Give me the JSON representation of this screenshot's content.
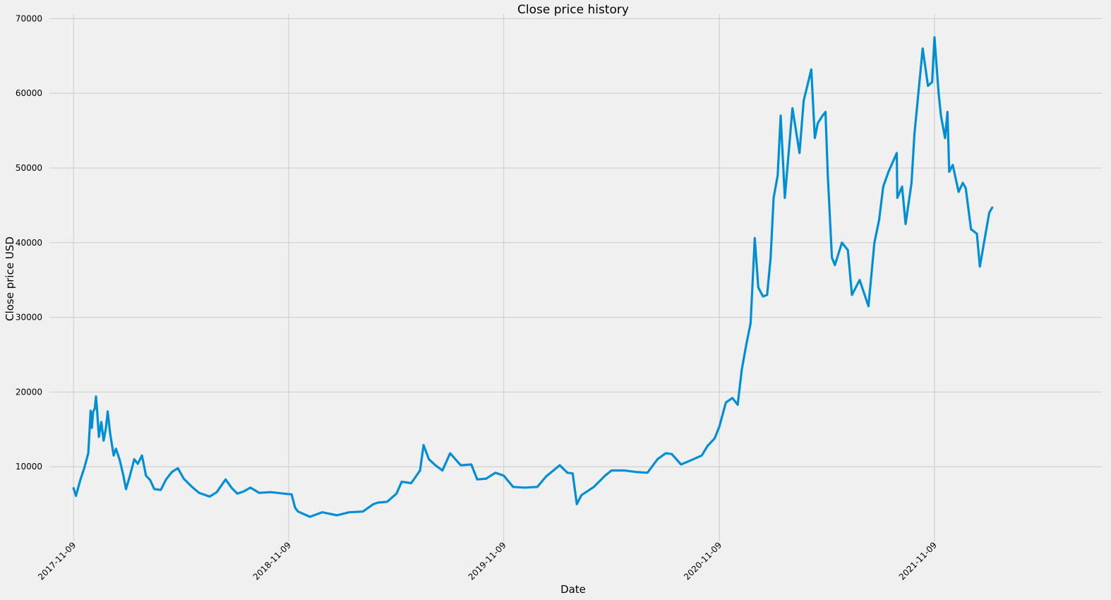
{
  "chart_data": {
    "type": "line",
    "title": "Close price history",
    "xlabel": "Date",
    "ylabel": "Close price USD",
    "x_tick_labels": [
      "2017-11-09",
      "2018-11-09",
      "2019-11-09",
      "2020-11-09",
      "2021-11-09"
    ],
    "y_tick_labels": [
      "10000",
      "20000",
      "30000",
      "40000",
      "50000",
      "60000",
      "70000"
    ],
    "yticks": [
      10000,
      20000,
      30000,
      40000,
      50000,
      60000,
      70000
    ],
    "xlim": [
      "2017-09-29",
      "2022-08-20"
    ],
    "ylim": [
      0,
      70600
    ],
    "grid": true,
    "colors": {
      "line": "#008fd5",
      "background": "#f0f0f0",
      "grid": "#cbcbcb"
    },
    "series": [
      {
        "x": [
          "2017-11-09",
          "2017-11-13",
          "2017-11-20",
          "2017-11-27",
          "2017-12-04",
          "2017-12-08",
          "2017-12-10",
          "2017-12-12",
          "2017-12-15",
          "2017-12-17",
          "2017-12-19",
          "2017-12-22",
          "2017-12-26",
          "2017-12-30",
          "2018-01-03",
          "2018-01-06",
          "2018-01-10",
          "2018-01-16",
          "2018-01-20",
          "2018-01-26",
          "2018-02-01",
          "2018-02-06",
          "2018-02-12",
          "2018-02-20",
          "2018-02-26",
          "2018-03-05",
          "2018-03-12",
          "2018-03-19",
          "2018-03-26",
          "2018-04-06",
          "2018-04-15",
          "2018-04-25",
          "2018-05-05",
          "2018-05-15",
          "2018-05-29",
          "2018-06-10",
          "2018-06-28",
          "2018-07-10",
          "2018-07-25",
          "2018-08-05",
          "2018-08-14",
          "2018-08-25",
          "2018-09-05",
          "2018-09-20",
          "2018-10-10",
          "2018-11-01",
          "2018-11-14",
          "2018-11-20",
          "2018-11-25",
          "2018-12-15",
          "2019-01-05",
          "2019-01-30",
          "2019-02-20",
          "2019-03-15",
          "2019-04-02",
          "2019-04-10",
          "2019-04-25",
          "2019-05-11",
          "2019-05-20",
          "2019-06-05",
          "2019-06-20",
          "2019-06-26",
          "2019-07-05",
          "2019-07-16",
          "2019-07-28",
          "2019-08-10",
          "2019-08-28",
          "2019-09-15",
          "2019-09-25",
          "2019-10-10",
          "2019-10-26",
          "2019-11-09",
          "2019-11-25",
          "2019-12-15",
          "2020-01-05",
          "2020-01-20",
          "2020-02-12",
          "2020-02-25",
          "2020-03-05",
          "2020-03-12",
          "2020-03-20",
          "2020-04-10",
          "2020-04-29",
          "2020-05-10",
          "2020-06-01",
          "2020-06-20",
          "2020-07-10",
          "2020-07-27",
          "2020-08-10",
          "2020-08-20",
          "2020-09-05",
          "2020-09-20",
          "2020-10-10",
          "2020-10-20",
          "2020-11-01",
          "2020-11-09",
          "2020-11-20",
          "2020-12-01",
          "2020-12-10",
          "2020-12-17",
          "2020-12-25",
          "2021-01-01",
          "2021-01-08",
          "2021-01-14",
          "2021-01-22",
          "2021-01-29",
          "2021-02-04",
          "2021-02-09",
          "2021-02-16",
          "2021-02-21",
          "2021-02-28",
          "2021-03-13",
          "2021-03-25",
          "2021-04-01",
          "2021-04-14",
          "2021-04-20",
          "2021-04-25",
          "2021-05-03",
          "2021-05-08",
          "2021-05-12",
          "2021-05-19",
          "2021-05-24",
          "2021-06-05",
          "2021-06-15",
          "2021-06-22",
          "2021-07-05",
          "2021-07-20",
          "2021-07-30",
          "2021-08-07",
          "2021-08-14",
          "2021-08-23",
          "2021-09-06",
          "2021-09-07",
          "2021-09-15",
          "2021-09-21",
          "2021-10-01",
          "2021-10-06",
          "2021-10-20",
          "2021-10-29",
          "2021-11-05",
          "2021-11-09",
          "2021-11-16",
          "2021-11-20",
          "2021-11-27",
          "2021-12-01",
          "2021-12-04",
          "2021-12-10",
          "2021-12-20",
          "2021-12-27",
          "2022-01-01",
          "2022-01-10",
          "2022-01-20",
          "2022-01-25",
          "2022-02-10",
          "2022-02-15"
        ],
        "y": [
          7140,
          6100,
          8100,
          9800,
          11800,
          17500,
          15200,
          17300,
          17800,
          19400,
          17500,
          14000,
          16000,
          13500,
          15200,
          17400,
          14500,
          11500,
          12400,
          11000,
          9000,
          7000,
          8600,
          11000,
          10400,
          11500,
          8800,
          8200,
          7000,
          6900,
          8300,
          9300,
          9800,
          8400,
          7300,
          6500,
          6000,
          6600,
          8300,
          7100,
          6400,
          6700,
          7200,
          6500,
          6600,
          6400,
          6300,
          4500,
          4000,
          3300,
          3900,
          3500,
          3900,
          4000,
          5000,
          5200,
          5300,
          6400,
          8000,
          7800,
          9500,
          12900,
          11000,
          10200,
          9500,
          11800,
          10200,
          10300,
          8300,
          8400,
          9200,
          8800,
          7300,
          7200,
          7300,
          8700,
          10200,
          9200,
          9100,
          5000,
          6200,
          7300,
          8800,
          9500,
          9500,
          9300,
          9200,
          11000,
          11800,
          11700,
          10300,
          10800,
          11500,
          12800,
          13800,
          15400,
          18600,
          19200,
          18300,
          23000,
          26500,
          29200,
          40600,
          34000,
          32800,
          33000,
          38000,
          46000,
          49000,
          57000,
          46000,
          58000,
          52000,
          59000,
          63200,
          54000,
          56000,
          57000,
          57500,
          49000,
          38000,
          37000,
          40000,
          39000,
          33000,
          35000,
          31500,
          40000,
          43000,
          47500,
          49500,
          52000,
          46000,
          47500,
          42500,
          48000,
          54500,
          66000,
          61000,
          61500,
          67500,
          60000,
          57000,
          54000,
          57500,
          49500,
          50400,
          46800,
          48000,
          47300,
          41800,
          41200,
          36800,
          44000,
          44700
        ]
      }
    ]
  }
}
